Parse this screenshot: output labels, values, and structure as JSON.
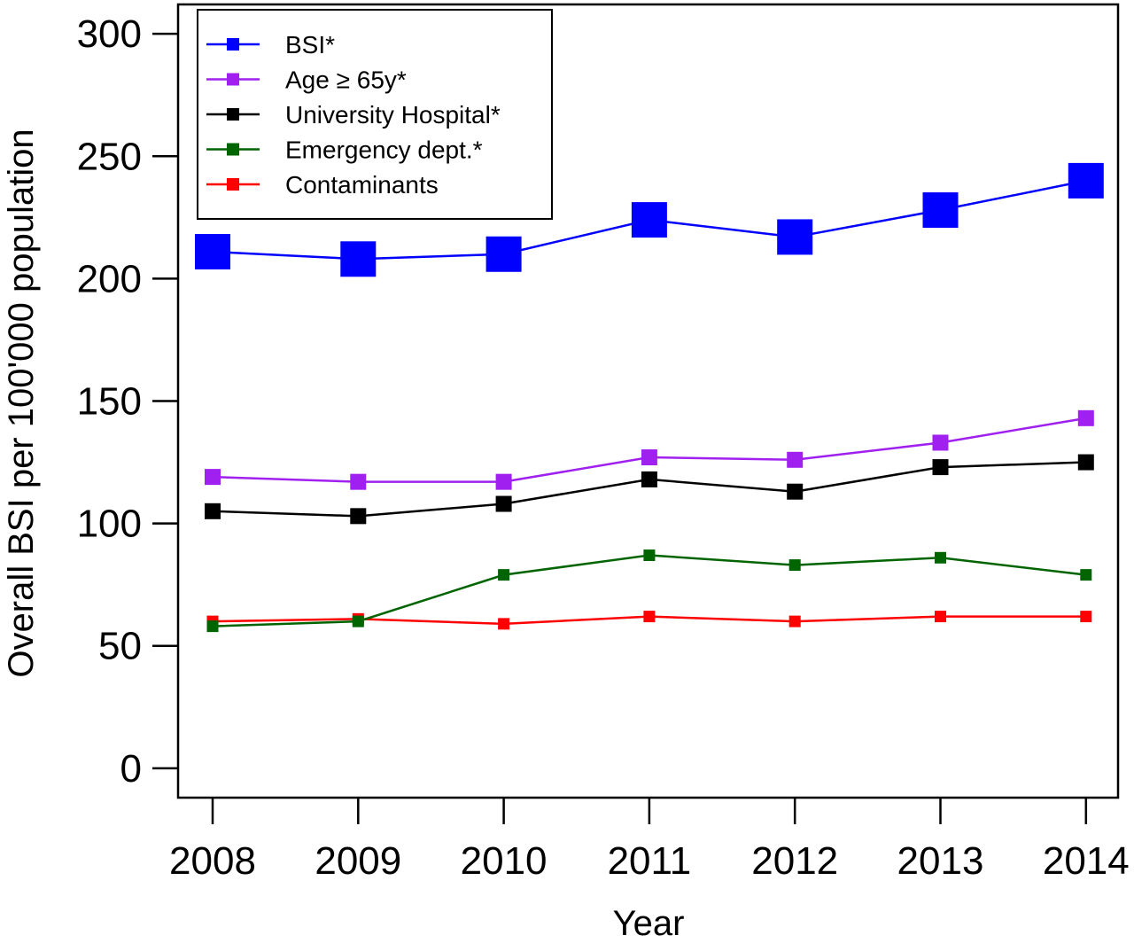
{
  "chart_data": {
    "type": "line",
    "title": "",
    "xlabel": "Year",
    "ylabel": "Overall BSI per 100'000 population",
    "categories": [
      "2008",
      "2009",
      "2010",
      "2011",
      "2012",
      "2013",
      "2014"
    ],
    "yticks": [
      "0",
      "50",
      "100",
      "150",
      "200",
      "250",
      "300"
    ],
    "ylim": [
      -12,
      312
    ],
    "grid": false,
    "legend_position": "top-left",
    "series": [
      {
        "name": "BSI*",
        "color": "#0000ff",
        "marker": "large-square",
        "values": [
          211,
          208,
          210,
          224,
          217,
          228,
          240
        ]
      },
      {
        "name": "Age ≥ 65y*",
        "color": "#a020f0",
        "marker": "square",
        "values": [
          119,
          117,
          117,
          127,
          126,
          133,
          143
        ]
      },
      {
        "name": "University Hospital*",
        "color": "#000000",
        "marker": "square",
        "values": [
          105,
          103,
          108,
          118,
          113,
          123,
          125
        ]
      },
      {
        "name": "Emergency dept.*",
        "color": "#006400",
        "marker": "small-square",
        "values": [
          58,
          60,
          79,
          87,
          83,
          86,
          79
        ]
      },
      {
        "name": "Contaminants",
        "color": "#ff0000",
        "marker": "small-square",
        "values": [
          60,
          61,
          59,
          62,
          60,
          62,
          62
        ]
      }
    ]
  }
}
